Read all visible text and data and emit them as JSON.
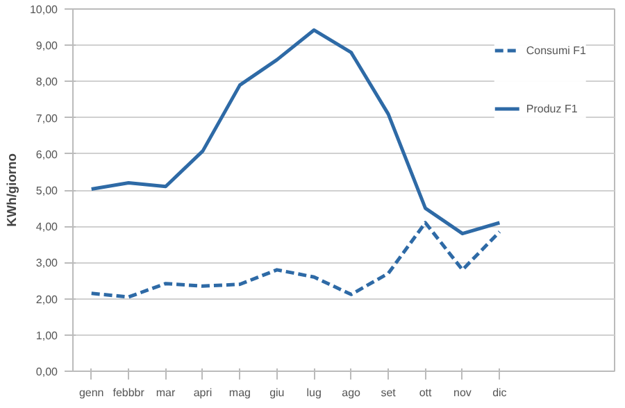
{
  "chart_data": {
    "type": "line",
    "ylabel": "KWh/giorno",
    "categories": [
      "genn",
      "febbbr",
      "mar",
      "apri",
      "mag",
      "giu",
      "lug",
      "ago",
      "set",
      "ott",
      "nov",
      "dic"
    ],
    "series": [
      {
        "name": "Consumi F1",
        "color": "#2e6aa6",
        "line_style": "dashed",
        "values": [
          2.15,
          2.05,
          2.42,
          2.35,
          2.4,
          2.8,
          2.6,
          2.12,
          2.7,
          4.1,
          2.8,
          3.85
        ]
      },
      {
        "name": "Produz F1",
        "color": "#2e6aa6",
        "line_style": "solid",
        "values": [
          5.03,
          5.2,
          5.1,
          6.08,
          7.9,
          8.6,
          9.42,
          8.8,
          7.1,
          4.5,
          3.8,
          4.1
        ]
      }
    ],
    "ylim": [
      0,
      10
    ],
    "yticks": [
      {
        "value": 0,
        "label": "0,00"
      },
      {
        "value": 1,
        "label": "1,00"
      },
      {
        "value": 2,
        "label": "2,00"
      },
      {
        "value": 3,
        "label": "3,00"
      },
      {
        "value": 4,
        "label": "4,00"
      },
      {
        "value": 5,
        "label": "5,00"
      },
      {
        "value": 6,
        "label": "6,00"
      },
      {
        "value": 7,
        "label": "7,00"
      },
      {
        "value": 8,
        "label": "8,00"
      },
      {
        "value": 9,
        "label": "9,00"
      },
      {
        "value": 10,
        "label": "10,00"
      }
    ],
    "grid": "y",
    "legend": "right",
    "marker": "none"
  }
}
